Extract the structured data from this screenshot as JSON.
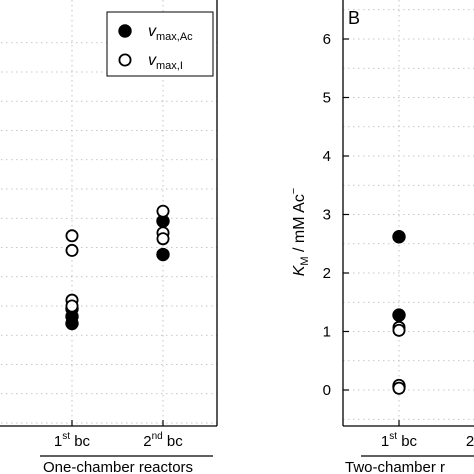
{
  "chart_data": [
    {
      "type": "scatter",
      "panel_label": "",
      "group_label": "One-chamber reactors",
      "categories": [
        "1",
        "2"
      ],
      "category_superscripts": [
        "st",
        "nd"
      ],
      "category_suffix": "bc",
      "xlabel": "",
      "ylabel": "",
      "ylim": [
        0,
        6.5
      ],
      "grid": true,
      "legend_position": "top-right",
      "series": [
        {
          "name": "v",
          "name_sub": "max,Ac",
          "marker": "filled-circle",
          "color": "#000000",
          "points": [
            {
              "x": "1",
              "y": 1.95
            },
            {
              "x": "1",
              "y": 1.82
            },
            {
              "x": "1",
              "y": 1.7
            },
            {
              "x": "2",
              "y": 3.45
            },
            {
              "x": "2",
              "y": 2.88
            }
          ]
        },
        {
          "name": "v",
          "name_sub": "max,I",
          "marker": "open-circle",
          "color": "#000000",
          "points": [
            {
              "x": "1",
              "y": 3.2
            },
            {
              "x": "1",
              "y": 2.95
            },
            {
              "x": "1",
              "y": 2.1
            },
            {
              "x": "1",
              "y": 2.0
            },
            {
              "x": "2",
              "y": 3.62
            },
            {
              "x": "2",
              "y": 3.25
            },
            {
              "x": "2",
              "y": 3.15
            }
          ]
        }
      ]
    },
    {
      "type": "scatter",
      "panel_label": "B",
      "group_label": "Two-chamber r",
      "categories": [
        "1",
        "2"
      ],
      "category_superscripts": [
        "st",
        ""
      ],
      "category_suffix": "bc",
      "xlabel": "",
      "ylabel": "K",
      "ylabel_sub": "M",
      "ylabel_rest": " / mM Ac",
      "ylabel_sup": "−",
      "ylim": [
        -0.65,
        6.5
      ],
      "yticks": [
        0,
        1,
        2,
        3,
        4,
        5,
        6
      ],
      "grid": true,
      "series": [
        {
          "name": "",
          "marker": "filled-circle",
          "color": "#000000",
          "points": [
            {
              "x": "1",
              "y": 2.62
            },
            {
              "x": "1",
              "y": 1.28
            },
            {
              "x": "1",
              "y": 0.06
            }
          ]
        },
        {
          "name": "",
          "marker": "open-circle",
          "color": "#000000",
          "points": [
            {
              "x": "1",
              "y": 1.07
            },
            {
              "x": "1",
              "y": 1.02
            },
            {
              "x": "1",
              "y": 0.08
            },
            {
              "x": "1",
              "y": 0.03
            }
          ]
        }
      ]
    }
  ]
}
